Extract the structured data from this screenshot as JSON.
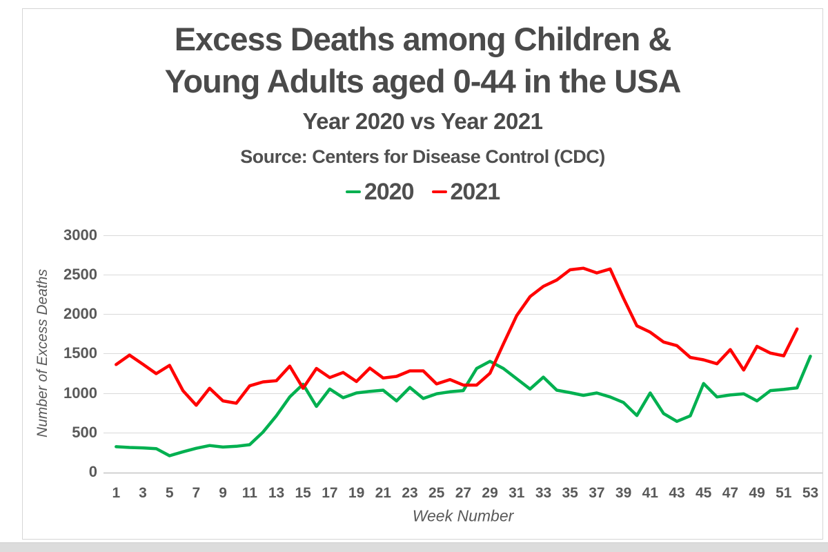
{
  "header": {
    "title_line1": "Excess Deaths among Children &",
    "title_line2": "Young Adults aged 0-44 in the USA",
    "subtitle": "Year 2020 vs Year 2021",
    "source": "Source: Centers for Disease Control (CDC)"
  },
  "legend": {
    "items": [
      {
        "label": "2020",
        "color": "#00B050"
      },
      {
        "label": "2021",
        "color": "#FF0000"
      }
    ]
  },
  "colors": {
    "series_2020": "#00B050",
    "series_2021": "#FF0000",
    "text": "#595959",
    "grid": "#D9D9D9"
  },
  "chart_data": {
    "type": "line",
    "title": "Excess Deaths among Children & Young Adults aged 0-44 in the USA",
    "subtitle": "Year 2020 vs Year 2021",
    "source": "Source: Centers for Disease Control (CDC)",
    "xlabel": "Week Number",
    "ylabel": "Number of Excess Deaths",
    "x": [
      1,
      2,
      3,
      4,
      5,
      6,
      7,
      8,
      9,
      10,
      11,
      12,
      13,
      14,
      15,
      16,
      17,
      18,
      19,
      20,
      21,
      22,
      23,
      24,
      25,
      26,
      27,
      28,
      29,
      30,
      31,
      32,
      33,
      34,
      35,
      36,
      37,
      38,
      39,
      40,
      41,
      42,
      43,
      44,
      45,
      46,
      47,
      48,
      49,
      50,
      51,
      52,
      53
    ],
    "x_tick_labels": [
      1,
      3,
      5,
      7,
      9,
      11,
      13,
      15,
      17,
      19,
      21,
      23,
      25,
      27,
      29,
      31,
      33,
      35,
      37,
      39,
      41,
      43,
      45,
      47,
      49,
      51,
      53
    ],
    "yticks": [
      0,
      500,
      1000,
      1500,
      2000,
      2500,
      3000
    ],
    "ylim": [
      0,
      3000
    ],
    "grid": "horizontal",
    "legend_position": "top",
    "series": [
      {
        "name": "2020",
        "color": "#00B050",
        "start_week": 1,
        "values": [
          320,
          310,
          305,
          295,
          205,
          255,
          300,
          335,
          315,
          325,
          345,
          505,
          710,
          950,
          1110,
          830,
          1050,
          940,
          1000,
          1020,
          1035,
          900,
          1070,
          930,
          990,
          1015,
          1030,
          1310,
          1400,
          1310,
          1180,
          1050,
          1200,
          1035,
          1005,
          970,
          1000,
          950,
          880,
          715,
          1000,
          740,
          640,
          710,
          1120,
          950,
          975,
          990,
          900,
          1030,
          1045,
          1065,
          1465
        ]
      },
      {
        "name": "2021",
        "color": "#FF0000",
        "start_week": 1,
        "values": [
          1360,
          1480,
          1365,
          1245,
          1350,
          1030,
          845,
          1060,
          900,
          870,
          1090,
          1140,
          1155,
          1340,
          1060,
          1310,
          1195,
          1260,
          1145,
          1315,
          1190,
          1210,
          1280,
          1280,
          1115,
          1170,
          1100,
          1100,
          1250,
          1620,
          1980,
          2220,
          2350,
          2430,
          2560,
          2580,
          2520,
          2570,
          2200,
          1850,
          1770,
          1645,
          1600,
          1450,
          1420,
          1370,
          1550,
          1290,
          1590,
          1505,
          1470,
          1810
        ]
      }
    ]
  }
}
